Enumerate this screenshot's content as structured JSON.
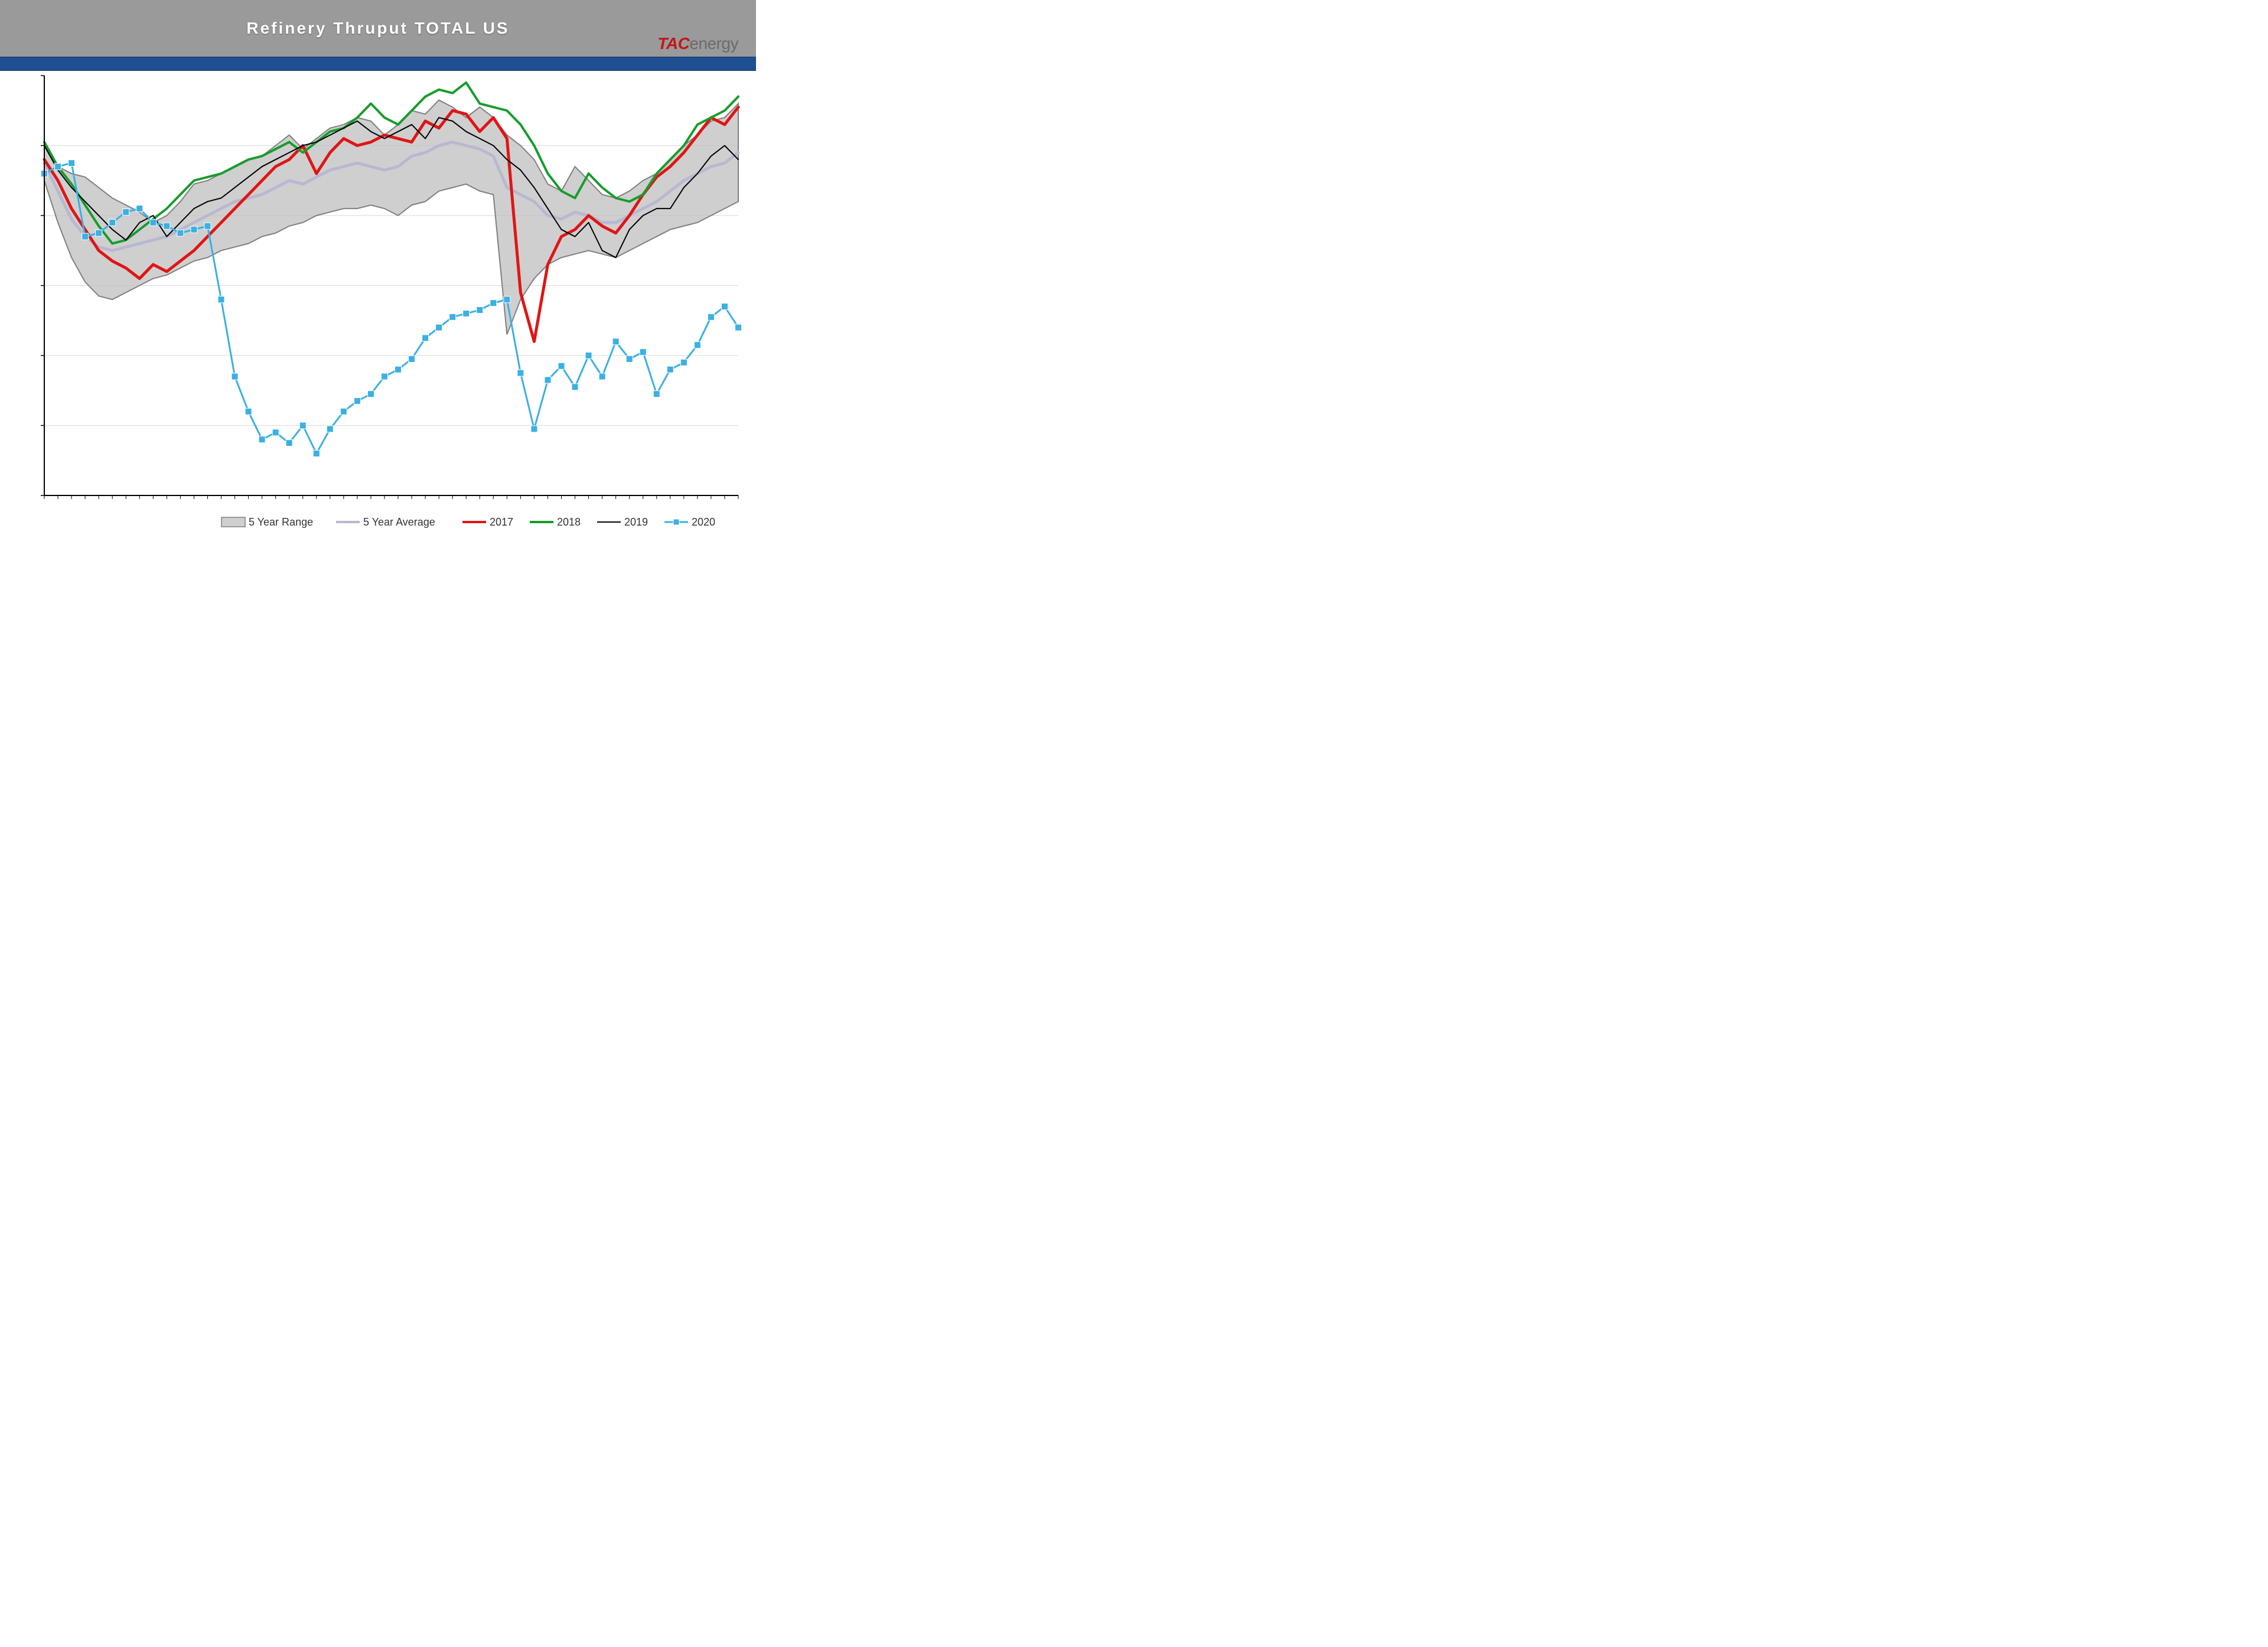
{
  "header": {
    "title": "Refinery Thruput TOTAL US",
    "logo_tac": "TAC",
    "logo_energy": "energy"
  },
  "chart": {
    "type": "line+area",
    "background_color": "#ffffff",
    "title_fontsize": 28,
    "title_color": "#ffffff",
    "plot": {
      "x_count": 52,
      "ylim": [
        12000,
        18000
      ],
      "ytick_step": 1000,
      "yticks": [
        12000,
        13000,
        14000,
        15000,
        16000,
        17000,
        18000
      ],
      "grid_color": "#d9d9d9",
      "axis_color": "#000000"
    },
    "legend": {
      "items": [
        {
          "key": "range",
          "label": "5 Year Range",
          "type": "area",
          "fill": "#bfbfbf",
          "stroke": "#808080"
        },
        {
          "key": "avg",
          "label": "5 Year Average",
          "type": "line",
          "color": "#b8b8d1",
          "width": 4
        },
        {
          "key": "y2017",
          "label": "2017",
          "type": "line",
          "color": "#e01515",
          "width": 4
        },
        {
          "key": "y2018",
          "label": "2018",
          "type": "line",
          "color": "#169c2b",
          "width": 4
        },
        {
          "key": "y2019",
          "label": "2019",
          "type": "line",
          "color": "#000000",
          "width": 2
        },
        {
          "key": "y2020",
          "label": "2020",
          "type": "line-marker",
          "color": "#3bb0e3",
          "width": 3,
          "marker": "square",
          "marker_size": 10
        }
      ],
      "fontsize": 18
    },
    "series": {
      "range_upper": [
        17000,
        16700,
        16600,
        16550,
        16400,
        16250,
        16150,
        16050,
        15900,
        16000,
        16200,
        16450,
        16500,
        16600,
        16700,
        16800,
        16850,
        17000,
        17150,
        16950,
        17100,
        17250,
        17300,
        17400,
        17350,
        17150,
        17300,
        17500,
        17450,
        17650,
        17550,
        17400,
        17550,
        17400,
        17150,
        17000,
        16800,
        16450,
        16350,
        16700,
        16500,
        16300,
        16250,
        16350,
        16500,
        16600,
        16800,
        17000,
        17150,
        17350,
        17400,
        17600
      ],
      "range_lower": [
        16500,
        15900,
        15400,
        15050,
        14850,
        14800,
        14900,
        15000,
        15100,
        15150,
        15250,
        15350,
        15400,
        15500,
        15550,
        15600,
        15700,
        15750,
        15850,
        15900,
        16000,
        16050,
        16100,
        16100,
        16150,
        16100,
        16000,
        16150,
        16200,
        16350,
        16400,
        16450,
        16350,
        16300,
        14300,
        14800,
        15100,
        15300,
        15400,
        15450,
        15500,
        15450,
        15400,
        15500,
        15600,
        15700,
        15800,
        15850,
        15900,
        16000,
        16100,
        16200
      ],
      "avg": [
        16750,
        16350,
        15950,
        15700,
        15550,
        15500,
        15550,
        15600,
        15650,
        15700,
        15800,
        15900,
        16000,
        16100,
        16200,
        16250,
        16300,
        16400,
        16500,
        16450,
        16550,
        16650,
        16700,
        16750,
        16700,
        16650,
        16700,
        16850,
        16900,
        17000,
        17050,
        17000,
        16950,
        16850,
        16400,
        16300,
        16200,
        16000,
        15950,
        16050,
        16000,
        15900,
        15900,
        16000,
        16100,
        16200,
        16350,
        16500,
        16600,
        16700,
        16750,
        16900
      ],
      "y2017": [
        16800,
        16500,
        16100,
        15800,
        15500,
        15350,
        15250,
        15100,
        15300,
        15200,
        15350,
        15500,
        15700,
        15900,
        16100,
        16300,
        16500,
        16700,
        16800,
        17000,
        16600,
        16900,
        17100,
        17000,
        17050,
        17150,
        17100,
        17050,
        17350,
        17250,
        17500,
        17450,
        17200,
        17400,
        17100,
        14900,
        14200,
        15300,
        15700,
        15800,
        16000,
        15850,
        15750,
        16000,
        16300,
        16550,
        16700,
        16900,
        17150,
        17400,
        17300,
        17550
      ],
      "y2018": [
        17050,
        16700,
        16450,
        16150,
        15850,
        15600,
        15650,
        15800,
        15950,
        16100,
        16300,
        16500,
        16550,
        16600,
        16700,
        16800,
        16850,
        16950,
        17050,
        16900,
        17050,
        17200,
        17250,
        17400,
        17600,
        17400,
        17300,
        17500,
        17700,
        17800,
        17750,
        17900,
        17600,
        17550,
        17500,
        17300,
        17000,
        16600,
        16350,
        16250,
        16600,
        16400,
        16250,
        16200,
        16300,
        16600,
        16800,
        17000,
        17300,
        17400,
        17500,
        17700
      ],
      "y2019": [
        17000,
        16650,
        16400,
        16200,
        16000,
        15800,
        15650,
        15900,
        16000,
        15700,
        15900,
        16100,
        16200,
        16250,
        16400,
        16550,
        16700,
        16800,
        16900,
        17000,
        17050,
        17150,
        17250,
        17350,
        17200,
        17100,
        17200,
        17300,
        17100,
        17400,
        17350,
        17200,
        17100,
        17000,
        16800,
        16650,
        16400,
        16100,
        15800,
        15700,
        15900,
        15500,
        15400,
        15800,
        16000,
        16100,
        16100,
        16400,
        16600,
        16850,
        17000,
        16800
      ],
      "y2020": [
        16600,
        16700,
        16750,
        15700,
        15750,
        15900,
        16050,
        16100,
        15900,
        15850,
        15750,
        15800,
        15850,
        14800,
        13700,
        13200,
        12800,
        12900,
        12750,
        13000,
        12600,
        12950,
        13200,
        13350,
        13450,
        13700,
        13800,
        13950,
        14250,
        14400,
        14550,
        14600,
        14650,
        14750,
        14800,
        13750,
        12950,
        13650,
        13850,
        13550,
        14000,
        13700,
        14200,
        13950,
        14050,
        13450,
        13800,
        13900,
        14150,
        14550,
        14700,
        14400
      ]
    },
    "styles": {
      "range": {
        "fill": "#bfbfbf",
        "fill_opacity": 0.75,
        "stroke": "#808080",
        "stroke_width": 2
      },
      "avg": {
        "stroke": "#b8b8d1",
        "stroke_width": 5,
        "fill": "none"
      },
      "y2017": {
        "stroke": "#e01515",
        "stroke_width": 5,
        "fill": "none"
      },
      "y2018": {
        "stroke": "#169c2b",
        "stroke_width": 4,
        "fill": "none"
      },
      "y2019": {
        "stroke": "#000000",
        "stroke_width": 2,
        "fill": "none"
      },
      "y2020": {
        "stroke": "#3bb0e3",
        "stroke_width": 3,
        "fill": "none",
        "marker": "square",
        "marker_size": 11,
        "marker_fill": "#3bb0e3",
        "marker_stroke": "#ffffff"
      }
    }
  }
}
